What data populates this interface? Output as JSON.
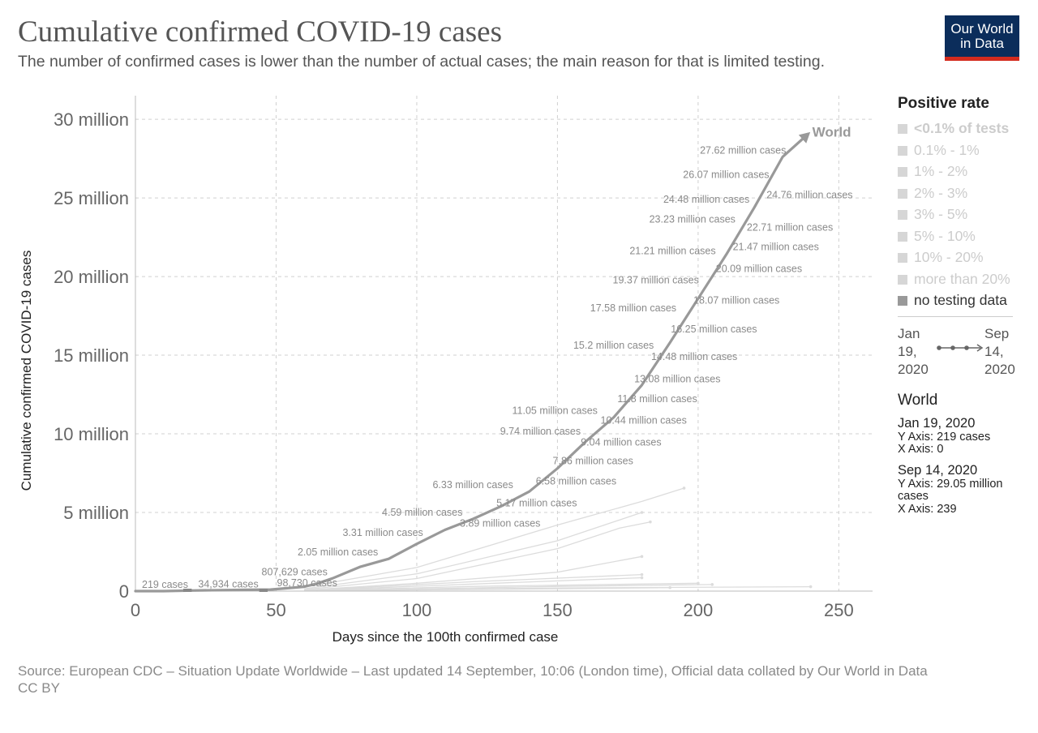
{
  "header": {
    "title": "Cumulative confirmed COVID-19 cases",
    "subtitle": "The number of confirmed cases is lower than the number of actual cases; the main reason for that is limited testing."
  },
  "logo": {
    "line1": "Our World",
    "line2": "in Data",
    "bg_color": "#0b2d5b",
    "accent_color": "#d42b1e"
  },
  "legend": {
    "title": "Positive rate",
    "items": [
      {
        "label": "<0.1% of tests",
        "bold": true,
        "active": false
      },
      {
        "label": "0.1% - 1%",
        "bold": false,
        "active": false
      },
      {
        "label": "1% - 2%",
        "bold": false,
        "active": false
      },
      {
        "label": "2% - 3%",
        "bold": false,
        "active": false
      },
      {
        "label": "3% - 5%",
        "bold": false,
        "active": false
      },
      {
        "label": "5% - 10%",
        "bold": false,
        "active": false
      },
      {
        "label": "10% - 20%",
        "bold": false,
        "active": false
      },
      {
        "label": "more than 20%",
        "bold": false,
        "active": false
      },
      {
        "label": "no testing data",
        "bold": false,
        "active": true
      }
    ],
    "timeline": {
      "start_month": "Jan",
      "start_day": "19,",
      "start_year": "2020",
      "end_month": "Sep",
      "end_day": "14,",
      "end_year": "2020"
    }
  },
  "info": {
    "entity": "World",
    "start": {
      "date": "Jan 19, 2020",
      "y": "Y Axis: 219 cases",
      "x": "X Axis: 0"
    },
    "end": {
      "date": "Sep 14, 2020",
      "y": "Y Axis: 29.05 million cases",
      "x": "X Axis: 239"
    }
  },
  "footer": {
    "source": "Source: European CDC – Situation Update Worldwide – Last updated 14 September, 10:06 (London time), Official data collated by Our World in Data",
    "license": "CC BY"
  },
  "chart_data": {
    "type": "line",
    "title": "Cumulative confirmed COVID-19 cases",
    "xlabel": "Days since the 100th confirmed case",
    "ylabel": "Cumulative confirmed COVID-19 cases",
    "xlim": [
      0,
      262
    ],
    "ylim": [
      0,
      31500000
    ],
    "x_ticks": [
      0,
      50,
      100,
      150,
      200,
      250
    ],
    "x_tick_labels": [
      "0",
      "50",
      "100",
      "150",
      "200",
      "250"
    ],
    "y_ticks": [
      0,
      5000000,
      10000000,
      15000000,
      20000000,
      25000000,
      30000000
    ],
    "y_tick_labels": [
      "0",
      "5 million",
      "10 million",
      "15 million",
      "20 million",
      "25 million",
      "30 million"
    ],
    "grid": true,
    "main_series": {
      "name": "World",
      "color": "#999999",
      "points": [
        [
          0,
          219
        ],
        [
          10,
          2000
        ],
        [
          20,
          34934
        ],
        [
          30,
          60000
        ],
        [
          40,
          80000
        ],
        [
          48,
          98730
        ],
        [
          60,
          280000
        ],
        [
          65,
          500000
        ],
        [
          70,
          807629
        ],
        [
          80,
          1550000
        ],
        [
          90,
          2050000
        ],
        [
          100,
          3000000
        ],
        [
          110,
          3890000
        ],
        [
          120,
          4590000
        ],
        [
          130,
          5400000
        ],
        [
          140,
          6330000
        ],
        [
          150,
          7800000
        ],
        [
          160,
          9500000
        ],
        [
          170,
          11050000
        ],
        [
          180,
          13100000
        ],
        [
          190,
          15800000
        ],
        [
          200,
          18600000
        ],
        [
          210,
          21400000
        ],
        [
          220,
          24400000
        ],
        [
          230,
          27600000
        ],
        [
          239,
          29050000
        ]
      ]
    },
    "annotations": [
      {
        "x": 0,
        "y": 219,
        "label": "219 cases",
        "side": "right"
      },
      {
        "x": 20,
        "y": 34934,
        "label": "34,934 cases",
        "side": "right"
      },
      {
        "x": 48,
        "y": 98730,
        "label": "98,730 cases",
        "side": "right"
      },
      {
        "x": 70,
        "y": 807629,
        "label": "807,629 cases",
        "side": "left"
      },
      {
        "x": 88,
        "y": 2050000,
        "label": "2.05 million cases",
        "side": "left"
      },
      {
        "x": 104,
        "y": 3310000,
        "label": "3.31 million cases",
        "side": "left"
      },
      {
        "x": 113,
        "y": 3890000,
        "label": "3.89 million cases",
        "side": "right"
      },
      {
        "x": 118,
        "y": 4590000,
        "label": "4.59 million cases",
        "side": "left"
      },
      {
        "x": 126,
        "y": 5170000,
        "label": "5.17 million cases",
        "side": "right"
      },
      {
        "x": 136,
        "y": 6330000,
        "label": "6.33 million cases",
        "side": "left"
      },
      {
        "x": 140,
        "y": 6580000,
        "label": "6.58 million cases",
        "side": "right"
      },
      {
        "x": 146,
        "y": 7860000,
        "label": "7.86 million cases",
        "side": "right"
      },
      {
        "x": 156,
        "y": 9040000,
        "label": "9.04 million cases",
        "side": "right"
      },
      {
        "x": 160,
        "y": 9740000,
        "label": "9.74 million cases",
        "side": "left"
      },
      {
        "x": 163,
        "y": 10440000,
        "label": "10.44 million cases",
        "side": "right"
      },
      {
        "x": 166,
        "y": 11050000,
        "label": "11.05 million cases",
        "side": "left"
      },
      {
        "x": 169,
        "y": 11800000,
        "label": "11.8 million cases",
        "side": "right"
      },
      {
        "x": 175,
        "y": 13080000,
        "label": "13.08 million cases",
        "side": "right"
      },
      {
        "x": 181,
        "y": 14480000,
        "label": "14.48 million cases",
        "side": "right"
      },
      {
        "x": 186,
        "y": 15200000,
        "label": "15.2 million cases",
        "side": "left"
      },
      {
        "x": 188,
        "y": 16250000,
        "label": "16.25 million cases",
        "side": "right"
      },
      {
        "x": 194,
        "y": 17580000,
        "label": "17.58 million cases",
        "side": "left"
      },
      {
        "x": 196,
        "y": 18070000,
        "label": "18.07 million cases",
        "side": "right"
      },
      {
        "x": 202,
        "y": 19370000,
        "label": "19.37 million cases",
        "side": "left"
      },
      {
        "x": 204,
        "y": 20090000,
        "label": "20.09 million cases",
        "side": "right"
      },
      {
        "x": 208,
        "y": 21210000,
        "label": "21.21 million cases",
        "side": "left"
      },
      {
        "x": 210,
        "y": 21470000,
        "label": "21.47 million cases",
        "side": "right"
      },
      {
        "x": 215,
        "y": 22710000,
        "label": "22.71 million cases",
        "side": "right"
      },
      {
        "x": 215,
        "y": 23230000,
        "label": "23.23 million cases",
        "side": "left"
      },
      {
        "x": 220,
        "y": 24480000,
        "label": "24.48 million cases",
        "side": "left"
      },
      {
        "x": 222,
        "y": 24760000,
        "label": "24.76 million cases",
        "side": "right"
      },
      {
        "x": 227,
        "y": 26070000,
        "label": "26.07 million cases",
        "side": "left"
      },
      {
        "x": 233,
        "y": 27620000,
        "label": "27.62 million cases",
        "side": "left"
      }
    ],
    "series_label": {
      "x": 240,
      "y": 29200000,
      "label": "World"
    },
    "background_series": [
      {
        "points": [
          [
            60,
            250000
          ],
          [
            100,
            1500000
          ],
          [
            150,
            4200000
          ],
          [
            180,
            5700000
          ],
          [
            195,
            6550000
          ]
        ]
      },
      {
        "points": [
          [
            60,
            150000
          ],
          [
            100,
            1100000
          ],
          [
            150,
            3200000
          ],
          [
            180,
            5000000
          ]
        ]
      },
      {
        "points": [
          [
            60,
            100000
          ],
          [
            100,
            800000
          ],
          [
            150,
            2700000
          ],
          [
            172,
            4000000
          ],
          [
            183,
            4400000
          ]
        ]
      },
      {
        "points": [
          [
            60,
            60000
          ],
          [
            100,
            500000
          ],
          [
            150,
            1200000
          ],
          [
            180,
            2200000
          ]
        ]
      },
      {
        "points": [
          [
            60,
            40000
          ],
          [
            120,
            600000
          ],
          [
            180,
            1050000
          ]
        ]
      },
      {
        "points": [
          [
            60,
            30000
          ],
          [
            120,
            450000
          ],
          [
            180,
            850000
          ]
        ]
      },
      {
        "points": [
          [
            60,
            20000
          ],
          [
            120,
            300000
          ],
          [
            200,
            500000
          ]
        ]
      },
      {
        "points": [
          [
            60,
            15000
          ],
          [
            150,
            300000
          ],
          [
            205,
            420000
          ]
        ]
      },
      {
        "points": [
          [
            60,
            10000
          ],
          [
            150,
            200000
          ],
          [
            240,
            280000
          ]
        ]
      },
      {
        "points": [
          [
            60,
            8000
          ],
          [
            150,
            150000
          ],
          [
            190,
            220000
          ]
        ]
      }
    ]
  }
}
